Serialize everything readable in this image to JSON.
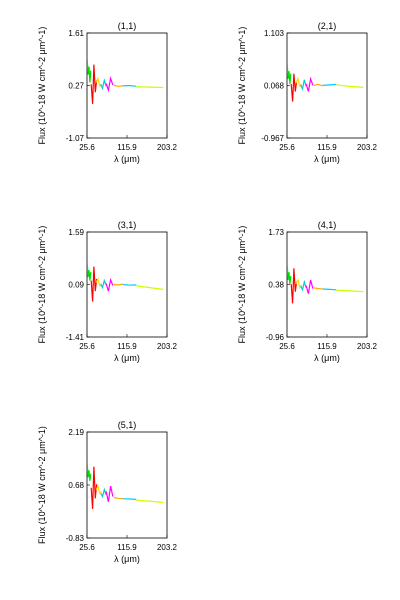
{
  "chart_data": [
    {
      "type": "line",
      "title": "(1,1)",
      "xlabel": "λ (μm)",
      "ylabel": "Flux (10^-18 W cm^-2 μm^-1)",
      "xlim": [
        25.6,
        203.2
      ],
      "ylim": [
        -1.07,
        1.61
      ],
      "xticks": [
        "25.6",
        "115.9",
        "203.2"
      ],
      "yticks": [
        "-1.07",
        "0.27",
        "1.61"
      ],
      "series": [
        {
          "color": "#00dd00",
          "x": [
            26,
            28,
            30,
            32,
            34
          ],
          "y": [
            0.95,
            0.55,
            0.75,
            0.35,
            0.65
          ]
        },
        {
          "color": "#ff0000",
          "x": [
            35,
            38,
            41,
            44,
            47
          ],
          "y": [
            0.3,
            -0.2,
            0.8,
            0.1,
            0.4
          ]
        },
        {
          "color": "#ffdd00",
          "x": [
            46,
            50,
            54,
            58
          ],
          "y": [
            0.35,
            0.45,
            0.25,
            0.3
          ]
        },
        {
          "color": "#00cccc",
          "x": [
            56,
            60,
            64,
            68
          ],
          "y": [
            0.3,
            0.2,
            0.4,
            0.25
          ]
        },
        {
          "color": "#ff00ff",
          "x": [
            68,
            73,
            78,
            83
          ],
          "y": [
            0.32,
            0.15,
            0.45,
            0.28
          ]
        },
        {
          "color": "#ffaa00",
          "x": [
            85,
            95,
            105
          ],
          "y": [
            0.27,
            0.25,
            0.26
          ]
        },
        {
          "color": "#00ccff",
          "x": [
            105,
            120,
            135
          ],
          "y": [
            0.26,
            0.27,
            0.25
          ]
        },
        {
          "color": "#ccff00",
          "x": [
            135,
            165,
            195
          ],
          "y": [
            0.24,
            0.23,
            0.22
          ]
        }
      ]
    },
    {
      "type": "line",
      "title": "(2,1)",
      "xlabel": "λ (μm)",
      "ylabel": "Flux (10^-18 W cm^-2 μm^-1)",
      "xlim": [
        25.6,
        203.2
      ],
      "ylim": [
        -0.967,
        1.103
      ],
      "xticks": [
        "25.6",
        "115.9",
        "203.2"
      ],
      "yticks": [
        "-0.967",
        "0.068",
        "1.103"
      ],
      "series": [
        {
          "color": "#00dd00",
          "x": [
            26,
            28,
            30,
            32,
            34
          ],
          "y": [
            0.5,
            0.2,
            0.35,
            0.1,
            0.3
          ]
        },
        {
          "color": "#ff0000",
          "x": [
            35,
            38,
            41,
            44,
            47
          ],
          "y": [
            0.1,
            -0.25,
            0.3,
            -0.05,
            0.15
          ]
        },
        {
          "color": "#ffdd00",
          "x": [
            46,
            50,
            54,
            58
          ],
          "y": [
            0.12,
            0.2,
            0.05,
            0.1
          ]
        },
        {
          "color": "#00cccc",
          "x": [
            56,
            60,
            64,
            68
          ],
          "y": [
            0.08,
            0.0,
            0.18,
            0.05
          ]
        },
        {
          "color": "#ff00ff",
          "x": [
            68,
            73,
            78,
            83
          ],
          "y": [
            0.1,
            -0.05,
            0.2,
            0.07
          ]
        },
        {
          "color": "#ffaa00",
          "x": [
            85,
            95,
            105
          ],
          "y": [
            0.07,
            0.09,
            0.06
          ]
        },
        {
          "color": "#00ccff",
          "x": [
            105,
            120,
            135
          ],
          "y": [
            0.07,
            0.08,
            0.09
          ]
        },
        {
          "color": "#ccff00",
          "x": [
            135,
            165,
            195
          ],
          "y": [
            0.08,
            0.05,
            0.03
          ]
        }
      ]
    },
    {
      "type": "line",
      "title": "(3,1)",
      "xlabel": "λ (μm)",
      "ylabel": "Flux (10^-18 W cm^-2 μm^-1)",
      "xlim": [
        25.6,
        203.2
      ],
      "ylim": [
        -1.41,
        1.59
      ],
      "xticks": [
        "25.6",
        "115.9",
        "203.2"
      ],
      "yticks": [
        "-1.41",
        "0.09",
        "1.59"
      ],
      "series": [
        {
          "color": "#00dd00",
          "x": [
            26,
            28,
            30,
            32,
            34
          ],
          "y": [
            0.7,
            0.3,
            0.5,
            0.2,
            0.45
          ]
        },
        {
          "color": "#ff0000",
          "x": [
            35,
            38,
            41,
            44,
            47
          ],
          "y": [
            0.2,
            -0.4,
            0.6,
            -0.1,
            0.25
          ]
        },
        {
          "color": "#ffdd00",
          "x": [
            46,
            50,
            54,
            58
          ],
          "y": [
            0.15,
            0.25,
            0.05,
            0.12
          ]
        },
        {
          "color": "#00cccc",
          "x": [
            56,
            60,
            64,
            68
          ],
          "y": [
            0.1,
            0.0,
            0.2,
            0.08
          ]
        },
        {
          "color": "#ff00ff",
          "x": [
            68,
            73,
            78,
            83
          ],
          "y": [
            0.12,
            -0.1,
            0.22,
            0.06
          ]
        },
        {
          "color": "#ffaa00",
          "x": [
            85,
            95,
            105
          ],
          "y": [
            0.09,
            0.08,
            0.1
          ]
        },
        {
          "color": "#00ccff",
          "x": [
            105,
            120,
            135
          ],
          "y": [
            0.09,
            0.07,
            0.08
          ]
        },
        {
          "color": "#ccff00",
          "x": [
            135,
            165,
            195
          ],
          "y": [
            0.05,
            0.0,
            -0.05
          ]
        }
      ]
    },
    {
      "type": "line",
      "title": "(4,1)",
      "xlabel": "λ (μm)",
      "ylabel": "Flux (10^-18 W cm^-2 μm^-1)",
      "xlim": [
        25.6,
        203.2
      ],
      "ylim": [
        -0.96,
        1.73
      ],
      "xticks": [
        "25.6",
        "115.9",
        "203.2"
      ],
      "yticks": [
        "-0.96",
        "0.38",
        "1.73"
      ],
      "series": [
        {
          "color": "#00dd00",
          "x": [
            26,
            28,
            30,
            32,
            34
          ],
          "y": [
            0.9,
            0.5,
            0.7,
            0.4,
            0.6
          ]
        },
        {
          "color": "#ff0000",
          "x": [
            35,
            38,
            41,
            44,
            47
          ],
          "y": [
            0.4,
            -0.1,
            0.8,
            0.2,
            0.45
          ]
        },
        {
          "color": "#ffdd00",
          "x": [
            46,
            50,
            54,
            58
          ],
          "y": [
            0.4,
            0.5,
            0.3,
            0.38
          ]
        },
        {
          "color": "#00cccc",
          "x": [
            56,
            60,
            64,
            68
          ],
          "y": [
            0.35,
            0.25,
            0.45,
            0.3
          ]
        },
        {
          "color": "#ff00ff",
          "x": [
            68,
            73,
            78,
            83
          ],
          "y": [
            0.36,
            0.15,
            0.5,
            0.28
          ]
        },
        {
          "color": "#ffaa00",
          "x": [
            85,
            95,
            105
          ],
          "y": [
            0.3,
            0.28,
            0.27
          ]
        },
        {
          "color": "#00ccff",
          "x": [
            105,
            120,
            135
          ],
          "y": [
            0.27,
            0.26,
            0.25
          ]
        },
        {
          "color": "#ccff00",
          "x": [
            135,
            165,
            195
          ],
          "y": [
            0.24,
            0.22,
            0.2
          ]
        }
      ]
    },
    {
      "type": "line",
      "title": "(5,1)",
      "xlabel": "λ (μm)",
      "ylabel": "Flux (10^-18 W cm^-2 μm^-1)",
      "xlim": [
        25.6,
        203.2
      ],
      "ylim": [
        -0.83,
        2.19
      ],
      "xticks": [
        "25.6",
        "115.9",
        "203.2"
      ],
      "yticks": [
        "-0.83",
        "0.68",
        "2.19"
      ],
      "series": [
        {
          "color": "#00dd00",
          "x": [
            26,
            28,
            30,
            32,
            34
          ],
          "y": [
            1.3,
            0.9,
            1.1,
            0.8,
            1.0
          ]
        },
        {
          "color": "#ff0000",
          "x": [
            35,
            38,
            41,
            44,
            47
          ],
          "y": [
            0.6,
            0.0,
            1.2,
            0.3,
            0.7
          ]
        },
        {
          "color": "#ffdd00",
          "x": [
            46,
            50,
            54,
            58
          ],
          "y": [
            0.55,
            0.65,
            0.45,
            0.5
          ]
        },
        {
          "color": "#00cccc",
          "x": [
            56,
            60,
            64,
            68
          ],
          "y": [
            0.45,
            0.35,
            0.55,
            0.4
          ]
        },
        {
          "color": "#ff00ff",
          "x": [
            68,
            73,
            78,
            83
          ],
          "y": [
            0.5,
            0.2,
            0.65,
            0.35
          ]
        },
        {
          "color": "#ffaa00",
          "x": [
            85,
            95,
            105
          ],
          "y": [
            0.32,
            0.3,
            0.29
          ]
        },
        {
          "color": "#00ccff",
          "x": [
            105,
            120,
            135
          ],
          "y": [
            0.29,
            0.28,
            0.27
          ]
        },
        {
          "color": "#ccff00",
          "x": [
            135,
            165,
            195
          ],
          "y": [
            0.25,
            0.22,
            0.18
          ]
        }
      ]
    }
  ]
}
